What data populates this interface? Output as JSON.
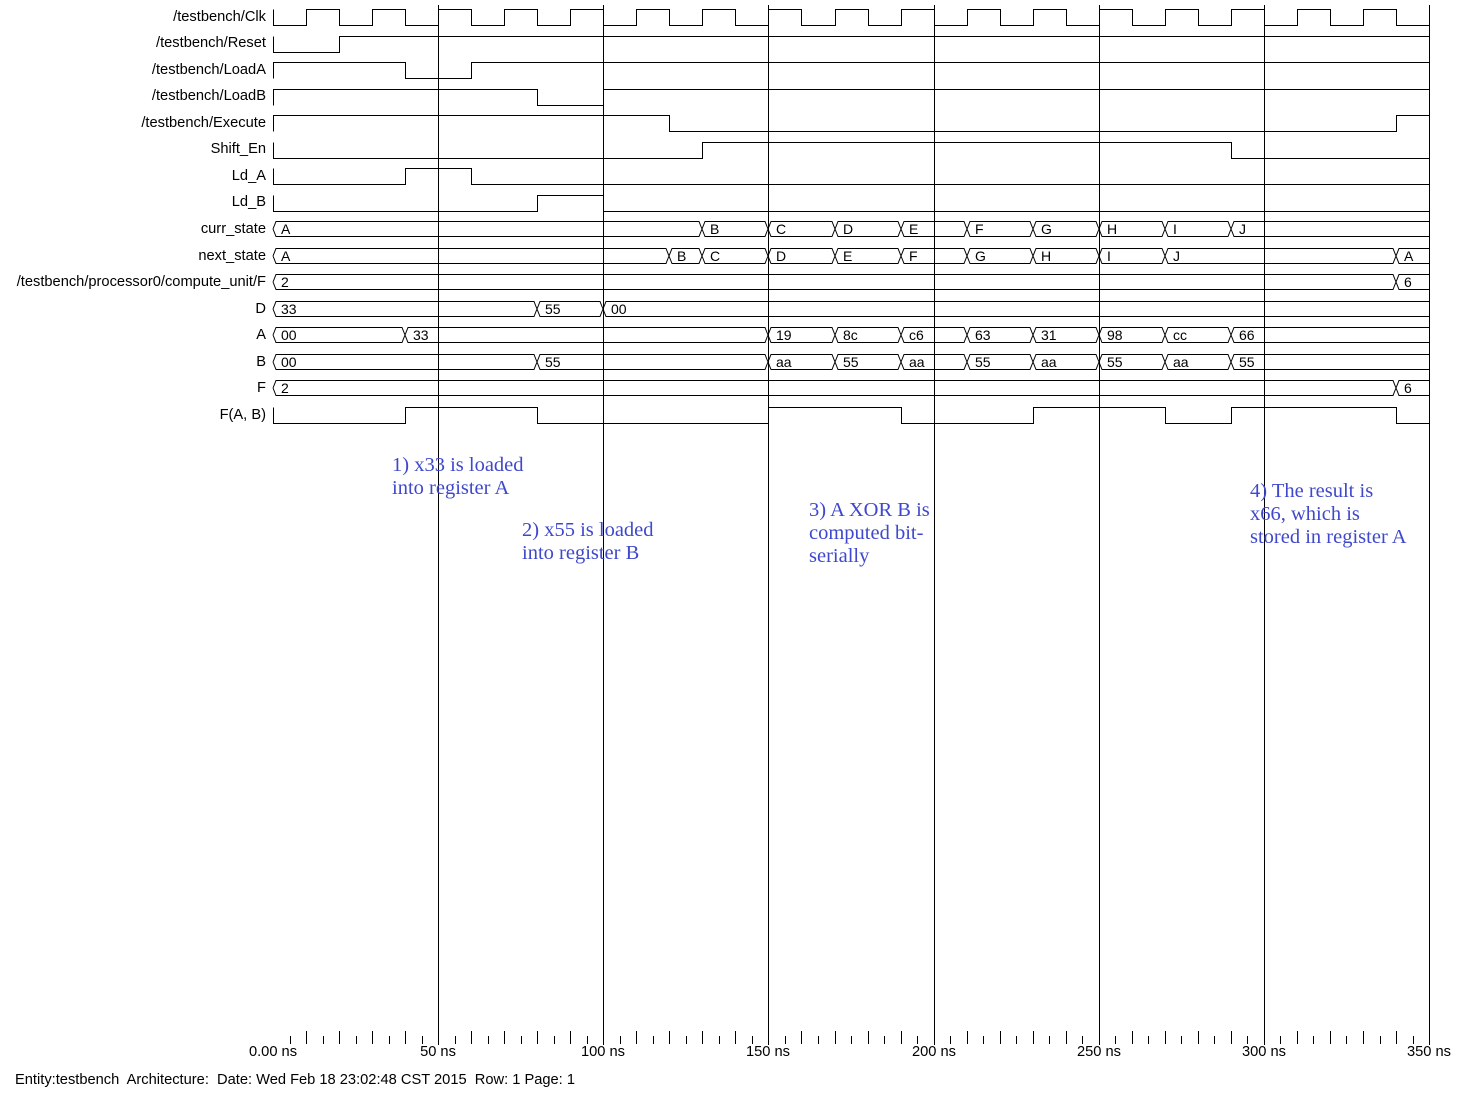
{
  "time_axis": {
    "range_ns": [
      0,
      350
    ],
    "major_tick_interval_ns": 50,
    "minor_tick_interval_ns": 5,
    "tick_labels": [
      {
        "t_ns": 0,
        "text": "0.00 ns"
      },
      {
        "t_ns": 50,
        "text": "50 ns"
      },
      {
        "t_ns": 100,
        "text": "100 ns"
      },
      {
        "t_ns": 150,
        "text": "150 ns"
      },
      {
        "t_ns": 200,
        "text": "200 ns"
      },
      {
        "t_ns": 250,
        "text": "250 ns"
      },
      {
        "t_ns": 300,
        "text": "300 ns"
      },
      {
        "t_ns": 350,
        "text": "350 ns"
      }
    ]
  },
  "signals": [
    {
      "name": "/testbench/Clk",
      "kind": "bit",
      "values": [
        [
          0,
          0
        ],
        [
          10,
          1
        ],
        [
          20,
          0
        ],
        [
          30,
          1
        ],
        [
          40,
          0
        ],
        [
          50,
          1
        ],
        [
          60,
          0
        ],
        [
          70,
          1
        ],
        [
          80,
          0
        ],
        [
          90,
          1
        ],
        [
          100,
          0
        ],
        [
          110,
          1
        ],
        [
          120,
          0
        ],
        [
          130,
          1
        ],
        [
          140,
          0
        ],
        [
          150,
          1
        ],
        [
          160,
          0
        ],
        [
          170,
          1
        ],
        [
          180,
          0
        ],
        [
          190,
          1
        ],
        [
          200,
          0
        ],
        [
          210,
          1
        ],
        [
          220,
          0
        ],
        [
          230,
          1
        ],
        [
          240,
          0
        ],
        [
          250,
          1
        ],
        [
          260,
          0
        ],
        [
          270,
          1
        ],
        [
          280,
          0
        ],
        [
          290,
          1
        ],
        [
          300,
          0
        ],
        [
          310,
          1
        ],
        [
          320,
          0
        ],
        [
          330,
          1
        ],
        [
          340,
          0
        ],
        [
          350,
          1
        ]
      ]
    },
    {
      "name": "/testbench/Reset",
      "kind": "bit",
      "values": [
        [
          0,
          0
        ],
        [
          20,
          1
        ]
      ]
    },
    {
      "name": "/testbench/LoadA",
      "kind": "bit",
      "values": [
        [
          0,
          1
        ],
        [
          40,
          0
        ],
        [
          60,
          1
        ]
      ]
    },
    {
      "name": "/testbench/LoadB",
      "kind": "bit",
      "values": [
        [
          0,
          1
        ],
        [
          80,
          0
        ],
        [
          100,
          1
        ]
      ]
    },
    {
      "name": "/testbench/Execute",
      "kind": "bit",
      "values": [
        [
          0,
          1
        ],
        [
          120,
          0
        ],
        [
          340,
          1
        ]
      ]
    },
    {
      "name": "Shift_En",
      "kind": "bit",
      "values": [
        [
          0,
          0
        ],
        [
          130,
          1
        ],
        [
          290,
          0
        ]
      ]
    },
    {
      "name": "Ld_A",
      "kind": "bit",
      "values": [
        [
          0,
          0
        ],
        [
          40,
          1
        ],
        [
          60,
          0
        ]
      ]
    },
    {
      "name": "Ld_B",
      "kind": "bit",
      "values": [
        [
          0,
          0
        ],
        [
          80,
          1
        ],
        [
          100,
          0
        ]
      ]
    },
    {
      "name": "curr_state",
      "kind": "bus",
      "values": [
        [
          0,
          "A"
        ],
        [
          130,
          "B"
        ],
        [
          150,
          "C"
        ],
        [
          170,
          "D"
        ],
        [
          190,
          "E"
        ],
        [
          210,
          "F"
        ],
        [
          230,
          "G"
        ],
        [
          250,
          "H"
        ],
        [
          270,
          "I"
        ],
        [
          290,
          "J"
        ]
      ]
    },
    {
      "name": "next_state",
      "kind": "bus",
      "values": [
        [
          0,
          "A"
        ],
        [
          120,
          "B"
        ],
        [
          130,
          "C"
        ],
        [
          150,
          "D"
        ],
        [
          170,
          "E"
        ],
        [
          190,
          "F"
        ],
        [
          210,
          "G"
        ],
        [
          230,
          "H"
        ],
        [
          250,
          "I"
        ],
        [
          270,
          "J"
        ],
        [
          340,
          "A"
        ]
      ]
    },
    {
      "name": "/testbench/processor0/compute_unit/F",
      "kind": "bus",
      "values": [
        [
          0,
          "2"
        ],
        [
          340,
          "6"
        ]
      ]
    },
    {
      "name": "D",
      "kind": "bus",
      "values": [
        [
          0,
          "33"
        ],
        [
          80,
          "55"
        ],
        [
          100,
          "00"
        ]
      ]
    },
    {
      "name": "A",
      "kind": "bus",
      "values": [
        [
          0,
          "00"
        ],
        [
          40,
          "33"
        ],
        [
          150,
          "19"
        ],
        [
          170,
          "8c"
        ],
        [
          190,
          "c6"
        ],
        [
          210,
          "63"
        ],
        [
          230,
          "31"
        ],
        [
          250,
          "98"
        ],
        [
          270,
          "cc"
        ],
        [
          290,
          "66"
        ]
      ]
    },
    {
      "name": "B",
      "kind": "bus",
      "values": [
        [
          0,
          "00"
        ],
        [
          80,
          "55"
        ],
        [
          150,
          "aa"
        ],
        [
          170,
          "55"
        ],
        [
          190,
          "aa"
        ],
        [
          210,
          "55"
        ],
        [
          230,
          "aa"
        ],
        [
          250,
          "55"
        ],
        [
          270,
          "aa"
        ],
        [
          290,
          "55"
        ]
      ]
    },
    {
      "name": "F",
      "kind": "bus",
      "values": [
        [
          0,
          "2"
        ],
        [
          340,
          "6"
        ]
      ]
    },
    {
      "name": "F(A, B)",
      "kind": "bit",
      "values": [
        [
          0,
          0
        ],
        [
          40,
          1
        ],
        [
          80,
          0
        ],
        [
          150,
          1
        ],
        [
          190,
          0
        ],
        [
          230,
          1
        ],
        [
          270,
          0
        ],
        [
          290,
          1
        ],
        [
          340,
          0
        ]
      ]
    }
  ],
  "annotation_color": "#3F48CC",
  "annotations": [
    {
      "lines": [
        "1) x33 is loaded",
        "into register A"
      ]
    },
    {
      "lines": [
        "2) x55 is loaded",
        "into register B"
      ]
    },
    {
      "lines": [
        "3) A XOR B is",
        "computed bit-",
        "serially"
      ]
    },
    {
      "lines": [
        "4) The result is",
        "x66, which is",
        "stored in register A"
      ]
    }
  ],
  "footer": "Entity:testbench  Architecture:  Date: Wed Feb 18 23:02:48 CST 2015  Row: 1 Page: 1"
}
